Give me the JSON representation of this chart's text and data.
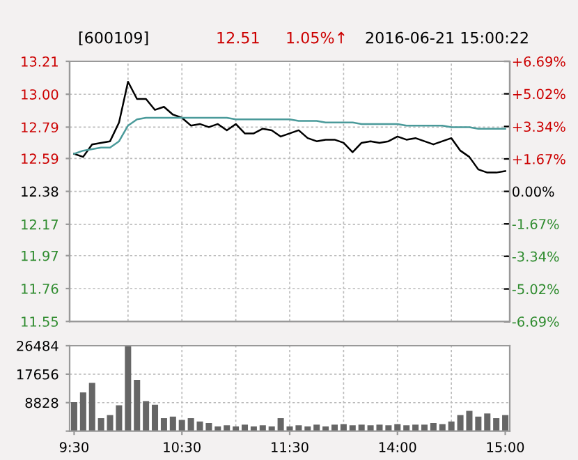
{
  "chart_data": [
    {
      "type": "line",
      "title": "[600109]",
      "annotations": [
        "12.51",
        "1.05%↑",
        "2016-06-21 15:00:22"
      ],
      "categories": [
        null,
        null,
        null,
        null,
        null,
        null,
        null,
        null,
        null,
        null,
        null,
        null,
        null,
        null,
        null,
        null,
        null,
        null,
        null,
        null,
        null,
        null,
        null,
        null,
        null,
        null,
        null,
        null,
        null,
        null,
        null,
        null,
        null,
        null,
        null,
        null,
        null,
        null,
        null,
        null,
        null,
        null,
        null,
        null,
        null,
        null,
        null,
        null,
        null
      ],
      "series": [
        {
          "color": "#000000",
          "values": [
            12.62,
            12.6,
            12.68,
            12.69,
            12.7,
            12.82,
            13.08,
            12.97,
            12.97,
            12.9,
            12.92,
            12.87,
            12.85,
            12.8,
            12.81,
            12.79,
            12.81,
            12.77,
            12.81,
            12.75,
            12.75,
            12.78,
            12.77,
            12.73,
            12.75,
            12.77,
            12.72,
            12.7,
            12.71,
            12.71,
            12.69,
            12.63,
            12.69,
            12.7,
            12.69,
            12.7,
            12.73,
            12.71,
            12.72,
            12.7,
            12.68,
            12.7,
            12.72,
            12.64,
            12.6,
            12.52,
            12.5,
            12.5,
            12.51
          ]
        },
        {
          "color": "#4a9a9a",
          "values": [
            12.62,
            12.64,
            12.65,
            12.66,
            12.66,
            12.7,
            12.8,
            12.84,
            12.85,
            12.85,
            12.85,
            12.85,
            12.85,
            12.85,
            12.85,
            12.85,
            12.85,
            12.85,
            12.84,
            12.84,
            12.84,
            12.84,
            12.84,
            12.84,
            12.84,
            12.83,
            12.83,
            12.83,
            12.82,
            12.82,
            12.82,
            12.82,
            12.81,
            12.81,
            12.81,
            12.81,
            12.81,
            12.8,
            12.8,
            12.8,
            12.8,
            12.8,
            12.79,
            12.79,
            12.79,
            12.78,
            12.78,
            12.78,
            12.78
          ]
        }
      ],
      "ylim": [
        11.55,
        13.21
      ],
      "yticks": [
        11.55,
        11.76,
        11.97,
        12.17,
        12.38,
        12.59,
        12.79,
        {
          "value": 13.0,
          "label": "13.00"
        },
        13.21
      ],
      "y2lim": [
        -6.69,
        6.69
      ],
      "y2ticks": [
        {
          "value": -6.69,
          "label": "-6.69%"
        },
        {
          "value": -5.02,
          "label": "-5.02%"
        },
        {
          "value": -3.34,
          "label": "-3.34%"
        },
        {
          "value": -1.67,
          "label": "-1.67%"
        },
        {
          "value": 0,
          "label": "0.00%"
        },
        {
          "value": 1.67,
          "label": "+1.67%"
        },
        {
          "value": 3.34,
          "label": "+3.34%"
        },
        {
          "value": 5.02,
          "label": "+5.02%"
        },
        {
          "value": 6.69,
          "label": "+6.69%"
        }
      ],
      "tick_labels": "y",
      "grid": true,
      "line_style": "solid"
    },
    {
      "type": "bar",
      "categories": [
        "9:30",
        null,
        null,
        null,
        null,
        null,
        null,
        null,
        null,
        null,
        null,
        null,
        "10:30",
        null,
        null,
        null,
        null,
        null,
        null,
        null,
        null,
        null,
        null,
        null,
        "11:30",
        null,
        null,
        null,
        null,
        null,
        null,
        null,
        null,
        null,
        null,
        null,
        "14:00",
        null,
        null,
        null,
        null,
        null,
        null,
        null,
        null,
        null,
        null,
        null,
        "15:00"
      ],
      "values": [
        9000,
        12000,
        15000,
        4000,
        5000,
        8000,
        26400,
        15900,
        9300,
        8200,
        4000,
        4500,
        3500,
        4000,
        3000,
        2500,
        1500,
        1800,
        1500,
        2000,
        1500,
        1800,
        1500,
        4000,
        1500,
        1800,
        1500,
        2000,
        1500,
        2000,
        2200,
        1800,
        2000,
        1800,
        2000,
        1800,
        2200,
        1800,
        2000,
        2000,
        2500,
        2200,
        3000,
        5000,
        6300,
        4500,
        5500,
        4000,
        5000
      ],
      "color": "#666666",
      "ylim": [
        0,
        26484
      ],
      "yticks": [
        {
          "value": 0,
          "label": null
        },
        8828,
        17656,
        26484
      ],
      "grid": true
    }
  ]
}
